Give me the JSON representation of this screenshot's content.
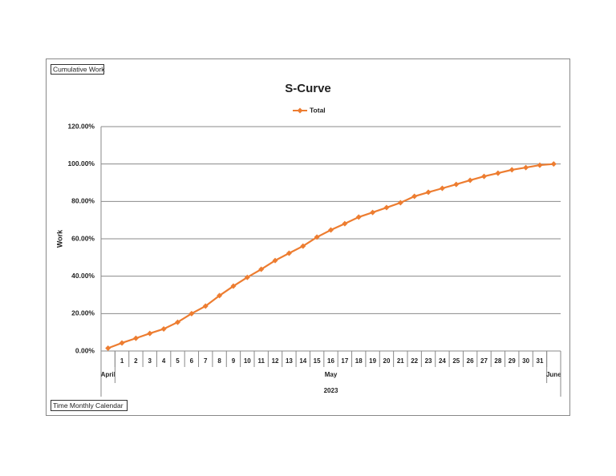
{
  "chart_data": {
    "type": "line",
    "title": "S-Curve",
    "y_label": "Work",
    "field_buttons": [
      "Cumulative Work",
      "Time Monthly Calendar"
    ],
    "categories": [
      null,
      "1",
      "2",
      "3",
      "4",
      "5",
      "6",
      "7",
      "8",
      "9",
      "10",
      "11",
      "12",
      "13",
      "14",
      "15",
      "16",
      "17",
      "18",
      "19",
      "20",
      "21",
      "22",
      "23",
      "24",
      "25",
      "26",
      "27",
      "28",
      "29",
      "30",
      "31",
      null
    ],
    "month_groups": [
      {
        "label": "April",
        "count": 1
      },
      {
        "label": "May",
        "count": 31
      },
      {
        "label": "June",
        "count": 1
      }
    ],
    "year_groups": [
      {
        "label": "2023",
        "count": 33
      }
    ],
    "series": [
      {
        "name": "Total",
        "color": "#ed7d31",
        "values": [
          1.5,
          4.3,
          6.8,
          9.4,
          11.8,
          15.4,
          20,
          24,
          29.6,
          34.7,
          39.4,
          43.7,
          48.4,
          52.3,
          56.1,
          60.9,
          64.7,
          68.1,
          71.6,
          74.1,
          76.7,
          79.3,
          82.7,
          84.9,
          87,
          89.1,
          91.3,
          93.4,
          95.1,
          96.9,
          98.1,
          99.4,
          100
        ]
      }
    ],
    "ylim": [
      0,
      120
    ],
    "yticks": [
      {
        "value": 0,
        "label": "0.00%"
      },
      {
        "value": 20,
        "label": "20.00%"
      },
      {
        "value": 40,
        "label": "40.00%"
      },
      {
        "value": 60,
        "label": "60.00%"
      },
      {
        "value": 80,
        "label": "80.00%"
      },
      {
        "value": 100,
        "label": "100.00%"
      },
      {
        "value": 120,
        "label": "120.00%"
      }
    ],
    "grid": true,
    "legend": "top"
  }
}
